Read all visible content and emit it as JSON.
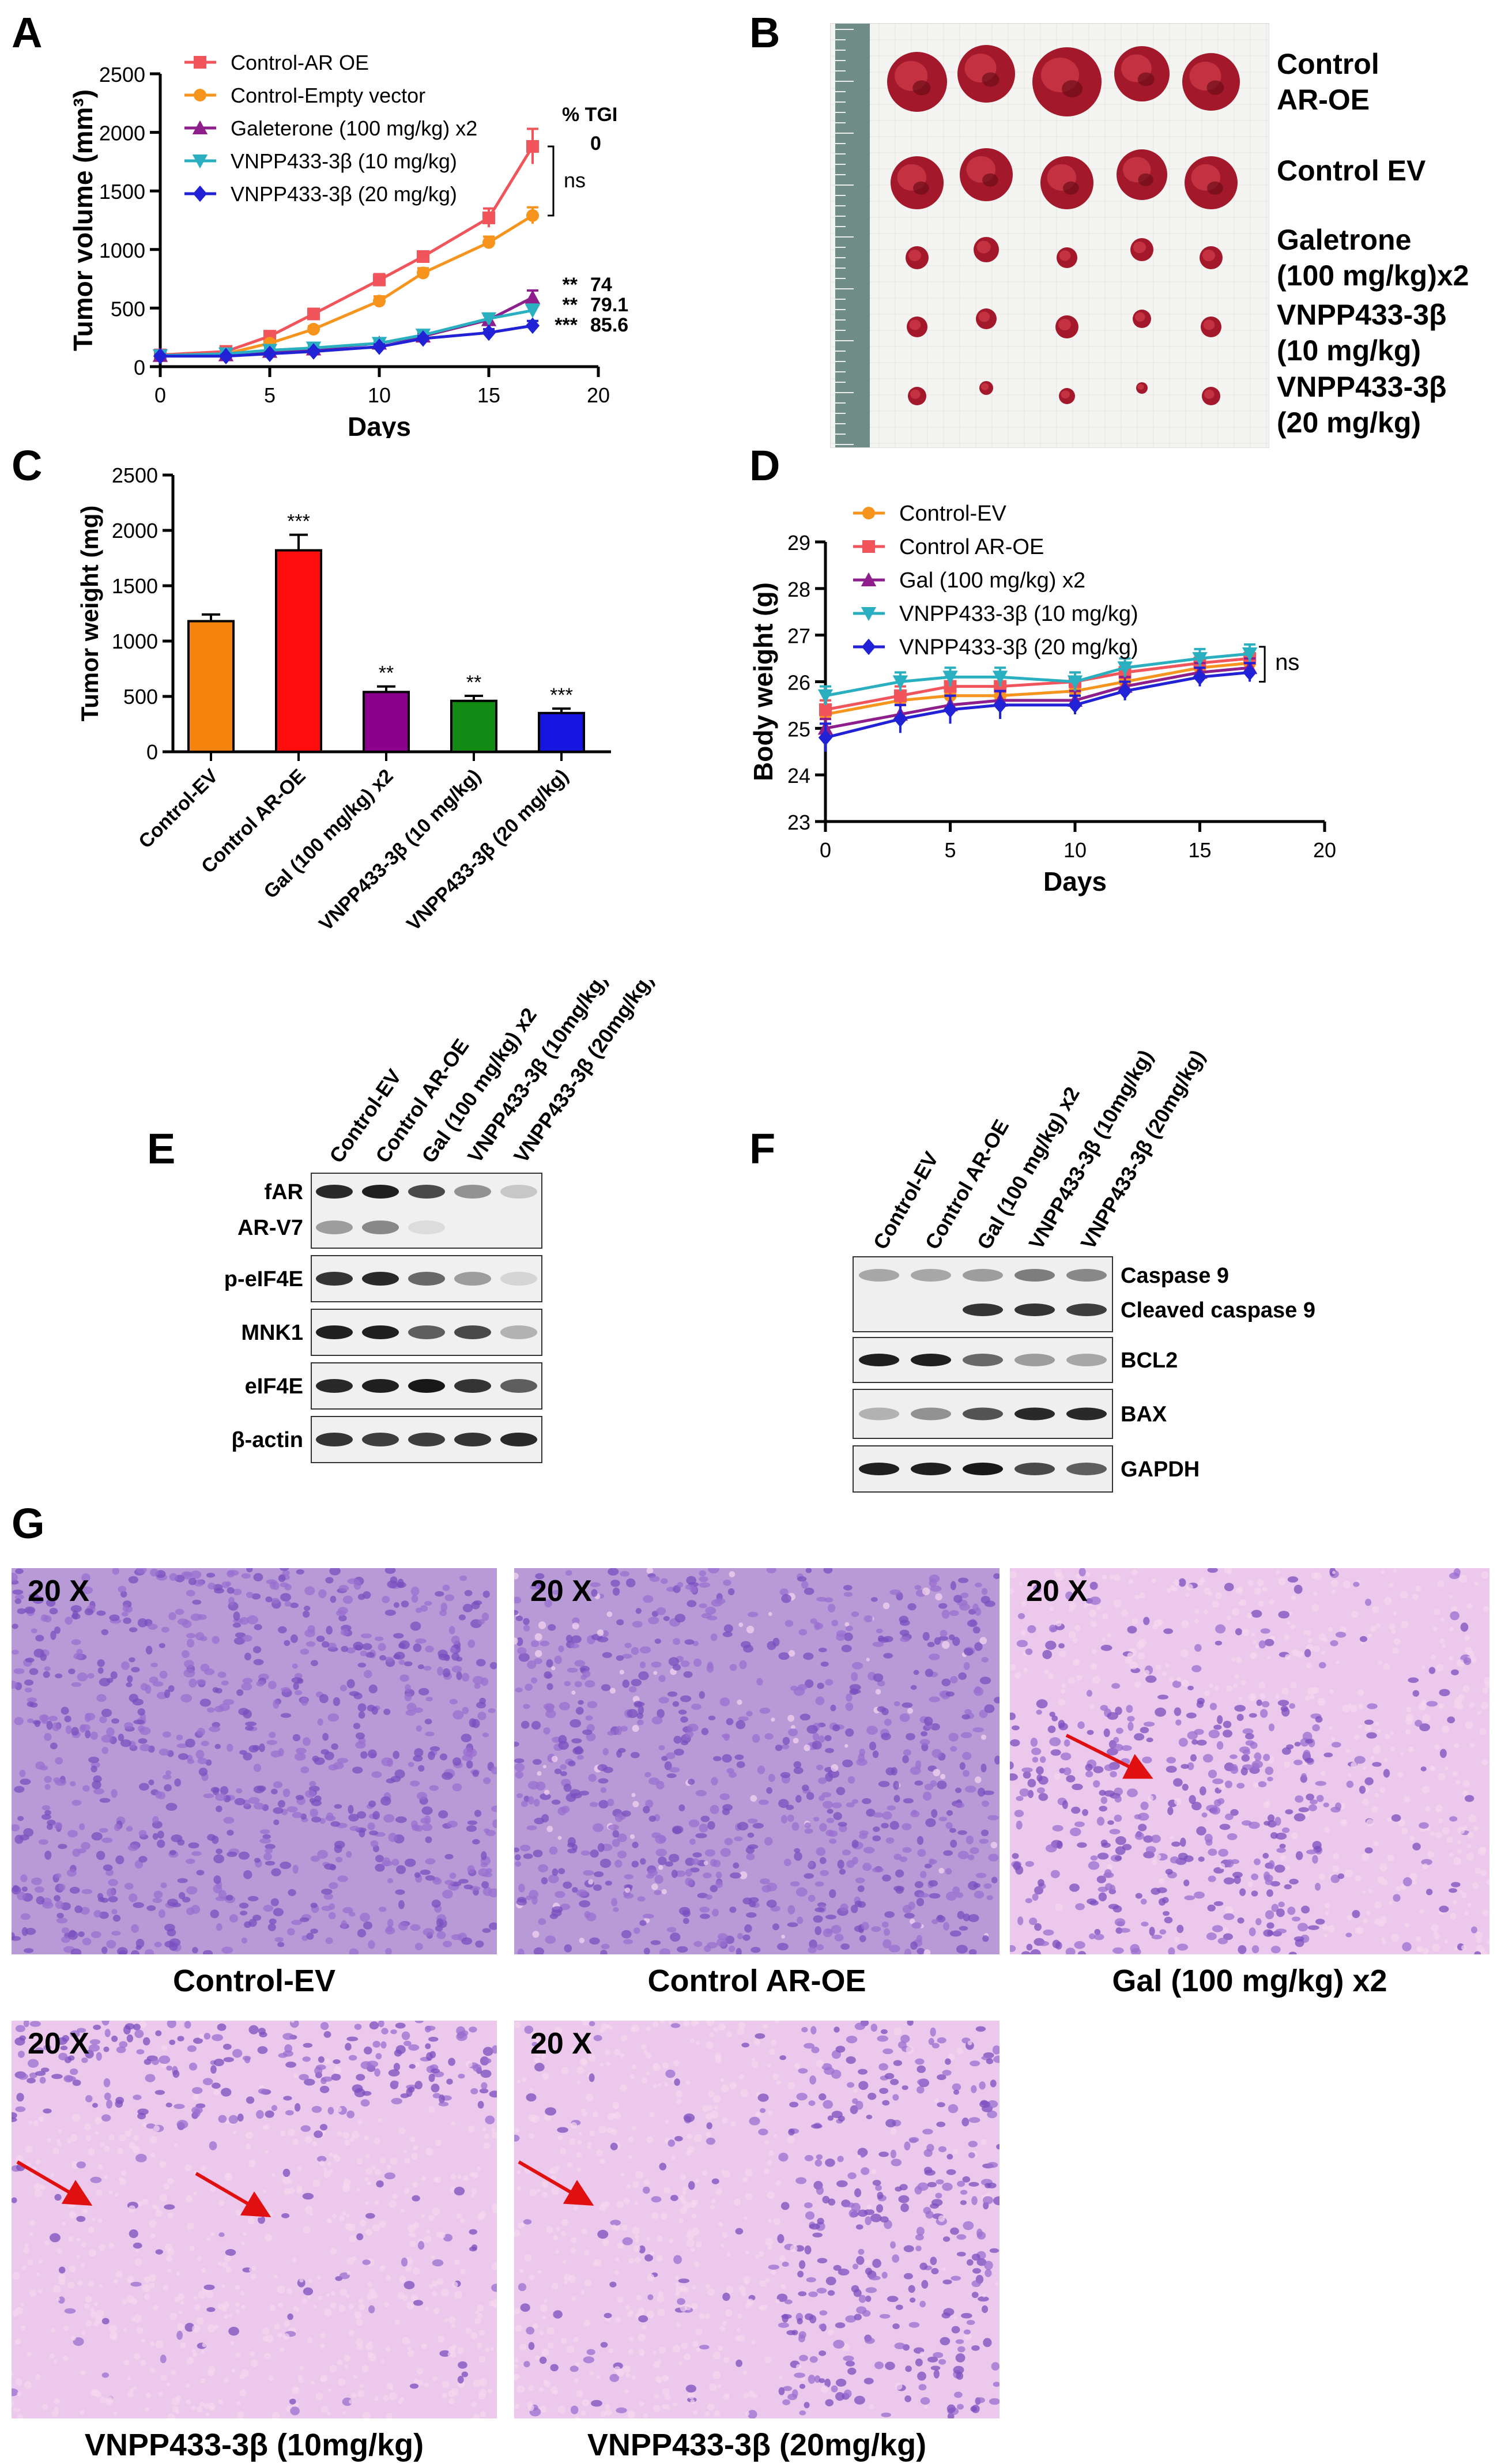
{
  "panels": {
    "A": "A",
    "B": "B",
    "C": "C",
    "D": "D",
    "E": "E",
    "F": "F",
    "G": "G"
  },
  "colors": {
    "ar_oe": "#f2545b",
    "empty": "#f7941d",
    "gal": "#8e1e8c",
    "vnpp10": "#2aafc0",
    "vnpp20": "#2121d6",
    "bar_ev": "#f7830f",
    "bar_aroe": "#ff0d0d",
    "bar_gal": "#8a008a",
    "bar_v10": "#138a13",
    "bar_v20": "#1616e0",
    "arrow": "#e01010",
    "he_bg": "#d9a9df"
  },
  "chart_data": [
    {
      "id": "A",
      "type": "line",
      "ylabel": "Tumor volume (mm³)",
      "xlabel": "Days",
      "xlim": [
        0,
        20
      ],
      "ylim": [
        0,
        2500
      ],
      "xticks": [
        "0",
        "5",
        "10",
        "15",
        "20"
      ],
      "yticks": [
        "0",
        "500",
        "1000",
        "1500",
        "2000",
        "2500"
      ],
      "series": [
        {
          "name": "Control-AR OE",
          "marker": "square",
          "x": [
            0,
            3,
            5,
            7,
            10,
            12,
            15,
            17
          ],
          "y": [
            100,
            130,
            260,
            450,
            740,
            940,
            1270,
            1880
          ],
          "err": [
            10,
            15,
            25,
            30,
            50,
            40,
            80,
            150
          ]
        },
        {
          "name": "Control-Empty vector",
          "marker": "circle",
          "x": [
            0,
            3,
            5,
            7,
            10,
            12,
            15,
            17
          ],
          "y": [
            90,
            110,
            200,
            320,
            560,
            800,
            1060,
            1290
          ],
          "err": [
            10,
            10,
            20,
            25,
            40,
            40,
            50,
            70
          ]
        },
        {
          "name": "Galeterone (100 mg/kg) x2",
          "marker": "triangle-up",
          "x": [
            0,
            3,
            5,
            7,
            10,
            12,
            15,
            17
          ],
          "y": [
            95,
            100,
            130,
            150,
            200,
            260,
            400,
            590
          ],
          "err": [
            10,
            10,
            15,
            15,
            20,
            25,
            40,
            60
          ]
        },
        {
          "name": "VNPP433-3β (10 mg/kg)",
          "marker": "triangle-down",
          "x": [
            0,
            3,
            5,
            7,
            10,
            12,
            15,
            17
          ],
          "y": [
            95,
            110,
            140,
            160,
            200,
            270,
            410,
            480
          ],
          "err": [
            10,
            10,
            15,
            15,
            20,
            25,
            40,
            50
          ]
        },
        {
          "name": "VNPP433-3β (20 mg/kg)",
          "marker": "diamond",
          "x": [
            0,
            3,
            5,
            7,
            10,
            12,
            15,
            17
          ],
          "y": [
            90,
            90,
            110,
            130,
            170,
            240,
            290,
            350
          ],
          "err": [
            10,
            10,
            10,
            15,
            20,
            20,
            30,
            40
          ]
        }
      ],
      "tgi_header": "% TGI",
      "annotations": [
        {
          "stars": "",
          "tgi": "0"
        },
        {
          "stars": "**",
          "tgi": "74"
        },
        {
          "stars": "**",
          "tgi": "79.1"
        },
        {
          "stars": "***",
          "tgi": "85.6"
        }
      ],
      "ns": "ns"
    },
    {
      "id": "C",
      "type": "bar",
      "ylabel": "Tumor weight (mg)",
      "ylim": [
        0,
        2500
      ],
      "yticks": [
        "0",
        "500",
        "1000",
        "1500",
        "2000",
        "2500"
      ],
      "categories": [
        "Control-EV",
        "Control AR-OE",
        "Gal (100 mg/kg) x2",
        "VNPP433-3β (10 mg/kg)",
        "VNPP433-3β (20 mg/kg)"
      ],
      "values": [
        1180,
        1820,
        540,
        460,
        350
      ],
      "errors": [
        60,
        140,
        50,
        45,
        40
      ],
      "significance": [
        "",
        "***",
        "**",
        "**",
        "***"
      ]
    },
    {
      "id": "D",
      "type": "line",
      "ylabel": "Body weight (g)",
      "xlabel": "Days",
      "xlim": [
        0,
        20
      ],
      "ylim": [
        23,
        29
      ],
      "xticks": [
        "0",
        "5",
        "10",
        "15",
        "20"
      ],
      "yticks": [
        "23",
        "24",
        "25",
        "26",
        "27",
        "28",
        "29"
      ],
      "series": [
        {
          "name": "Control-EV",
          "marker": "circle",
          "x": [
            0,
            3,
            5,
            7,
            10,
            12,
            15,
            17
          ],
          "y": [
            25.3,
            25.6,
            25.7,
            25.7,
            25.8,
            26.0,
            26.3,
            26.4
          ],
          "err": [
            0.2,
            0.2,
            0.2,
            0.2,
            0.2,
            0.2,
            0.2,
            0.2
          ]
        },
        {
          "name": "Control AR-OE",
          "marker": "square",
          "x": [
            0,
            3,
            5,
            7,
            10,
            12,
            15,
            17
          ],
          "y": [
            25.4,
            25.7,
            25.9,
            25.9,
            26.0,
            26.2,
            26.4,
            26.5
          ],
          "err": [
            0.2,
            0.2,
            0.2,
            0.2,
            0.2,
            0.2,
            0.2,
            0.2
          ]
        },
        {
          "name": "Gal (100 mg/kg) x2",
          "marker": "triangle-up",
          "x": [
            0,
            3,
            5,
            7,
            10,
            12,
            15,
            17
          ],
          "y": [
            25.0,
            25.3,
            25.5,
            25.6,
            25.6,
            25.9,
            26.2,
            26.3
          ],
          "err": [
            0.2,
            0.2,
            0.2,
            0.2,
            0.2,
            0.2,
            0.2,
            0.2
          ]
        },
        {
          "name": "VNPP433-3β (10 mg/kg)",
          "marker": "triangle-down",
          "x": [
            0,
            3,
            5,
            7,
            10,
            12,
            15,
            17
          ],
          "y": [
            25.7,
            26.0,
            26.1,
            26.1,
            26.0,
            26.3,
            26.5,
            26.6
          ],
          "err": [
            0.2,
            0.2,
            0.2,
            0.2,
            0.2,
            0.2,
            0.2,
            0.2
          ]
        },
        {
          "name": "VNPP433-3β (20 mg/kg)",
          "marker": "diamond",
          "x": [
            0,
            3,
            5,
            7,
            10,
            12,
            15,
            17
          ],
          "y": [
            24.8,
            25.2,
            25.4,
            25.5,
            25.5,
            25.8,
            26.1,
            26.2
          ],
          "err": [
            0.3,
            0.3,
            0.3,
            0.3,
            0.2,
            0.2,
            0.2,
            0.2
          ]
        }
      ],
      "ns": "ns"
    }
  ],
  "photo": {
    "labels": [
      "Control\nAR-OE",
      "Control EV",
      "Galetrone\n(100 mg/kg)x2",
      "VNPP433-3β\n(10 mg/kg)",
      "VNPP433-3β\n(20 mg/kg)"
    ]
  },
  "blot_E": {
    "lanes": [
      "Control-EV",
      "Control AR-OE",
      "Gal (100 mg/kg) x2",
      "VNPP433-3β (10mg/kg)",
      "VNPP433-3β (20mg/kg)"
    ],
    "rows": [
      "fAR",
      "AR-V7",
      "p-eIF4E",
      "MNK1",
      "eIF4E",
      "β-actin"
    ],
    "intensity": {
      "fAR": [
        0.9,
        0.95,
        0.75,
        0.4,
        0.15
      ],
      "AR-V7": [
        0.35,
        0.45,
        0.05,
        0.0,
        0.0
      ],
      "p-eIF4E": [
        0.85,
        0.9,
        0.6,
        0.35,
        0.08
      ],
      "MNK1": [
        0.95,
        0.95,
        0.65,
        0.75,
        0.25
      ],
      "eIF4E": [
        0.9,
        0.95,
        0.98,
        0.85,
        0.65
      ],
      "β-actin": [
        0.85,
        0.8,
        0.8,
        0.85,
        0.9
      ]
    }
  },
  "blot_F": {
    "lanes": [
      "Control-EV",
      "Control AR-OE",
      "Gal (100 mg/kg) x2",
      "VNPP433-3β (10mg/kg)",
      "VNPP433-3β (20mg/kg)"
    ],
    "rows": [
      "Caspase 9",
      "Cleaved caspase 9",
      "BCL2",
      "BAX",
      "GAPDH"
    ],
    "intensity": {
      "Caspase 9": [
        0.3,
        0.3,
        0.35,
        0.5,
        0.45
      ],
      "Cleaved caspase 9": [
        0.0,
        0.0,
        0.85,
        0.85,
        0.8
      ],
      "BCL2": [
        0.95,
        0.95,
        0.6,
        0.35,
        0.3
      ],
      "BAX": [
        0.25,
        0.4,
        0.7,
        0.9,
        0.9
      ],
      "GAPDH": [
        0.95,
        0.95,
        0.98,
        0.75,
        0.65
      ]
    }
  },
  "histology": [
    {
      "mag": "20 X",
      "caption": "Control-EV"
    },
    {
      "mag": "20 X",
      "caption": "Control AR-OE"
    },
    {
      "mag": "20 X",
      "caption": "Gal (100 mg/kg) x2"
    },
    {
      "mag": "20 X",
      "caption": "VNPP433-3β (10mg/kg)"
    },
    {
      "mag": "20 X",
      "caption": "VNPP433-3β (20mg/kg)"
    }
  ]
}
